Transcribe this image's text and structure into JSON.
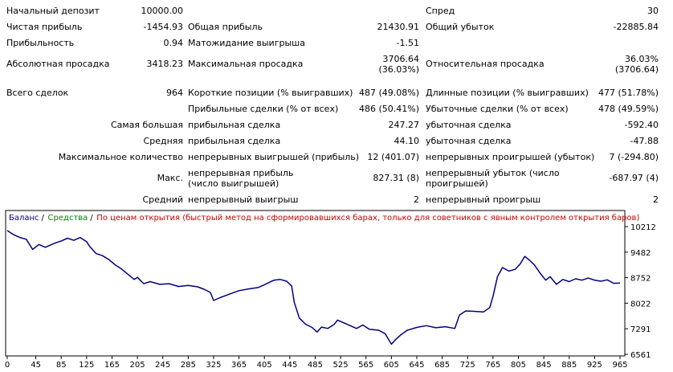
{
  "report": {
    "initial_deposit": {
      "label": "Начальный депозит",
      "value": "10000.00"
    },
    "spread": {
      "label": "Спред",
      "value": "30"
    },
    "net_profit": {
      "label": "Чистая прибыль",
      "value": "-1454.93"
    },
    "gross_profit": {
      "label": "Общая прибыль",
      "value": "21430.91"
    },
    "gross_loss": {
      "label": "Общий убыток",
      "value": "-22885.84"
    },
    "profit_factor": {
      "label": "Прибыльность",
      "value": "0.94"
    },
    "expected_payoff": {
      "label": "Матожидание выигрыша",
      "value": "-1.51"
    },
    "absolute_drawdown": {
      "label": "Абсолютная просадка",
      "value": "3418.23"
    },
    "maximal_drawdown": {
      "label": "Максимальная просадка",
      "value1": "3706.64",
      "value2": "(36.03%)"
    },
    "relative_drawdown": {
      "label": "Относительная просадка",
      "value1": "36.03%",
      "value2": "(3706.64)"
    },
    "total_trades": {
      "label": "Всего сделок",
      "value": "964"
    },
    "short_positions": {
      "label": "Короткие позиции (% выигравших)",
      "value": "487 (49.08%)"
    },
    "long_positions": {
      "label": "Длинные позиции (% выигравших)",
      "value": "477 (51.78%)"
    },
    "profit_trades": {
      "label": "Прибыльные сделки (% от всех)",
      "value": "486 (50.41%)"
    },
    "loss_trades": {
      "label": "Убыточные сделки (% от всех)",
      "value": "478 (49.59%)"
    },
    "largest": {
      "label": "Самая большая",
      "profit_label": "прибыльная сделка",
      "profit_value": "247.27",
      "loss_label": "убыточная сделка",
      "loss_value": "-592.40"
    },
    "average": {
      "label": "Средняя",
      "profit_label": "прибыльная сделка",
      "profit_value": "44.10",
      "loss_label": "убыточная сделка",
      "loss_value": "-47.88"
    },
    "max_consecutive": {
      "label": "Максимальное количество",
      "wins_label": "непрерывных выигрышей (прибыль)",
      "wins_value": "12 (401.07)",
      "losses_label": "непрерывных проигрышей (убыток)",
      "losses_value": "7 (-294.80)"
    },
    "max_consecutive_amount": {
      "label": "Макс.",
      "profit_label": "непрерывная прибыль (число выигрышей)",
      "profit_value": "827.31 (8)",
      "loss_label": "непрерывный убыток (число проигрышей)",
      "loss_value": "-687.97 (4)"
    },
    "avg_consecutive": {
      "label": "Средний",
      "wins_label": "непрерывный выигрыш",
      "wins_value": "2",
      "losses_label": "непрерывный проигрыш",
      "losses_value": "2"
    }
  },
  "chart_data": {
    "type": "line",
    "legend": [
      {
        "text": "Баланс",
        "color": "#000080"
      },
      {
        "text": "Средства",
        "color": "#008000"
      },
      {
        "text": "По ценам открытия (быстрый метод на сформировавшихся барах, только для советников с явным контролем открытия баров)",
        "color": "#cc0000"
      }
    ],
    "separator": "/",
    "x_ticks": [
      0,
      45,
      85,
      125,
      165,
      205,
      245,
      285,
      325,
      365,
      405,
      445,
      485,
      525,
      565,
      605,
      645,
      685,
      725,
      765,
      805,
      845,
      885,
      925,
      965
    ],
    "y_ticks": [
      10212,
      9482,
      8752,
      8022,
      7291,
      6561
    ],
    "ylim": [
      6561,
      10212
    ],
    "xlim": [
      0,
      965
    ],
    "series": [
      {
        "color": "#000080",
        "points": [
          [
            0,
            10100
          ],
          [
            10,
            9980
          ],
          [
            20,
            9900
          ],
          [
            30,
            9850
          ],
          [
            40,
            9560
          ],
          [
            50,
            9700
          ],
          [
            60,
            9620
          ],
          [
            75,
            9740
          ],
          [
            85,
            9800
          ],
          [
            95,
            9880
          ],
          [
            105,
            9820
          ],
          [
            115,
            9900
          ],
          [
            125,
            9780
          ],
          [
            130,
            9640
          ],
          [
            140,
            9440
          ],
          [
            150,
            9380
          ],
          [
            160,
            9270
          ],
          [
            170,
            9120
          ],
          [
            180,
            9000
          ],
          [
            190,
            8850
          ],
          [
            200,
            8700
          ],
          [
            205,
            8760
          ],
          [
            215,
            8580
          ],
          [
            225,
            8640
          ],
          [
            240,
            8560
          ],
          [
            255,
            8580
          ],
          [
            270,
            8500
          ],
          [
            285,
            8530
          ],
          [
            300,
            8490
          ],
          [
            310,
            8420
          ],
          [
            320,
            8330
          ],
          [
            325,
            8100
          ],
          [
            335,
            8180
          ],
          [
            350,
            8280
          ],
          [
            365,
            8380
          ],
          [
            380,
            8430
          ],
          [
            395,
            8470
          ],
          [
            405,
            8550
          ],
          [
            420,
            8680
          ],
          [
            430,
            8700
          ],
          [
            440,
            8650
          ],
          [
            448,
            8510
          ],
          [
            452,
            8050
          ],
          [
            460,
            7600
          ],
          [
            470,
            7420
          ],
          [
            480,
            7330
          ],
          [
            488,
            7200
          ],
          [
            495,
            7340
          ],
          [
            505,
            7300
          ],
          [
            515,
            7420
          ],
          [
            520,
            7540
          ],
          [
            530,
            7460
          ],
          [
            540,
            7380
          ],
          [
            550,
            7300
          ],
          [
            560,
            7400
          ],
          [
            570,
            7280
          ],
          [
            585,
            7250
          ],
          [
            595,
            7150
          ],
          [
            605,
            6850
          ],
          [
            612,
            6990
          ],
          [
            620,
            7120
          ],
          [
            630,
            7250
          ],
          [
            645,
            7330
          ],
          [
            660,
            7380
          ],
          [
            675,
            7320
          ],
          [
            690,
            7350
          ],
          [
            705,
            7300
          ],
          [
            712,
            7680
          ],
          [
            722,
            7800
          ],
          [
            735,
            7790
          ],
          [
            750,
            7770
          ],
          [
            760,
            7900
          ],
          [
            765,
            8220
          ],
          [
            772,
            8780
          ],
          [
            780,
            9040
          ],
          [
            790,
            8940
          ],
          [
            800,
            8990
          ],
          [
            808,
            9150
          ],
          [
            815,
            9360
          ],
          [
            822,
            9260
          ],
          [
            830,
            9120
          ],
          [
            840,
            8860
          ],
          [
            848,
            8680
          ],
          [
            855,
            8780
          ],
          [
            865,
            8560
          ],
          [
            875,
            8700
          ],
          [
            885,
            8640
          ],
          [
            895,
            8720
          ],
          [
            905,
            8680
          ],
          [
            915,
            8740
          ],
          [
            925,
            8680
          ],
          [
            935,
            8650
          ],
          [
            945,
            8690
          ],
          [
            955,
            8590
          ],
          [
            965,
            8600
          ]
        ]
      }
    ]
  }
}
